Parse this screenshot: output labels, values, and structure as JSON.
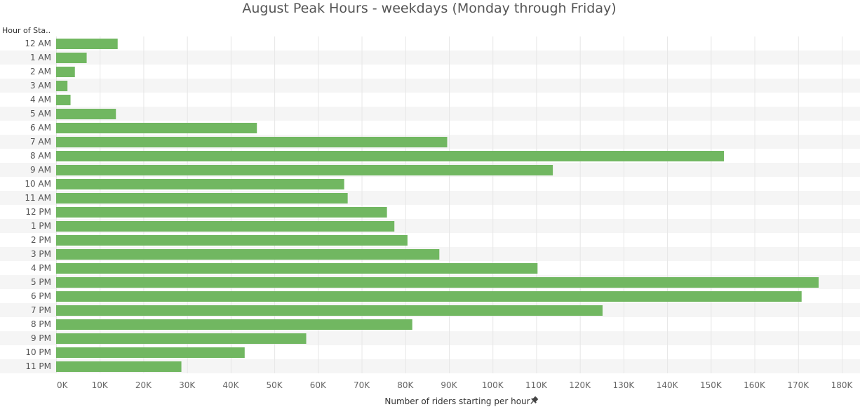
{
  "chart_data": {
    "type": "bar",
    "orientation": "horizontal",
    "title": "August Peak Hours - weekdays (Monday through Friday)",
    "row_header": "Hour of Sta..",
    "xlabel": "Number of riders starting per hour",
    "xlim": [
      0,
      180000
    ],
    "x_ticks": [
      0,
      10000,
      20000,
      30000,
      40000,
      50000,
      60000,
      70000,
      80000,
      90000,
      100000,
      110000,
      120000,
      130000,
      140000,
      150000,
      160000,
      170000,
      180000
    ],
    "x_tick_labels": [
      "0K",
      "10K",
      "20K",
      "30K",
      "40K",
      "50K",
      "60K",
      "70K",
      "80K",
      "90K",
      "100K",
      "110K",
      "120K",
      "130K",
      "140K",
      "150K",
      "160K",
      "170K",
      "180K"
    ],
    "grid": true,
    "bar_color": "#71b761",
    "categories": [
      "12 AM",
      "1 AM",
      "2 AM",
      "3 AM",
      "4 AM",
      "5 AM",
      "6 AM",
      "7 AM",
      "8 AM",
      "9 AM",
      "10 AM",
      "11 AM",
      "12 PM",
      "1 PM",
      "2 PM",
      "3 PM",
      "4 PM",
      "5 PM",
      "6 PM",
      "7 PM",
      "8 PM",
      "9 PM",
      "10 PM",
      "11 PM"
    ],
    "values": [
      14100,
      7000,
      4300,
      2600,
      3300,
      13700,
      46000,
      89600,
      153000,
      113800,
      66000,
      66800,
      75800,
      77500,
      80500,
      87800,
      110300,
      174700,
      170800,
      125200,
      81600,
      57300,
      43200,
      28700
    ]
  }
}
